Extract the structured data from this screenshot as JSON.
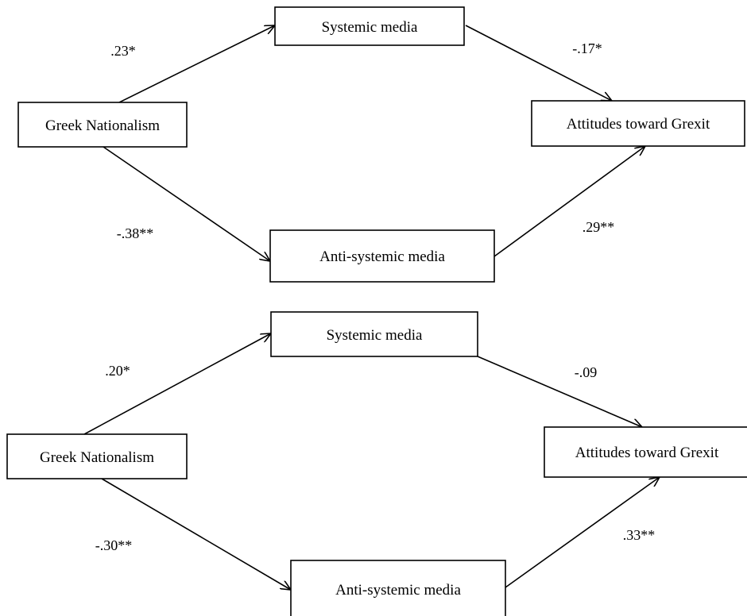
{
  "models": [
    {
      "nodes": {
        "nationalism": "Greek Nationalism",
        "systemic": "Systemic media",
        "anti_systemic": "Anti-systemic media",
        "grexit": "Attitudes toward Grexit"
      },
      "paths": {
        "nationalism_to_systemic": ".23*",
        "nationalism_to_anti_systemic": "-.38**",
        "systemic_to_grexit": "-.17*",
        "anti_systemic_to_grexit": ".29**"
      }
    },
    {
      "nodes": {
        "nationalism": "Greek Nationalism",
        "systemic": "Systemic media",
        "anti_systemic": "Anti-systemic media",
        "grexit": "Attitudes toward Grexit"
      },
      "paths": {
        "nationalism_to_systemic": ".20*",
        "nationalism_to_anti_systemic": "-.30**",
        "systemic_to_grexit": "-.09",
        "anti_systemic_to_grexit": ".33**"
      }
    }
  ]
}
